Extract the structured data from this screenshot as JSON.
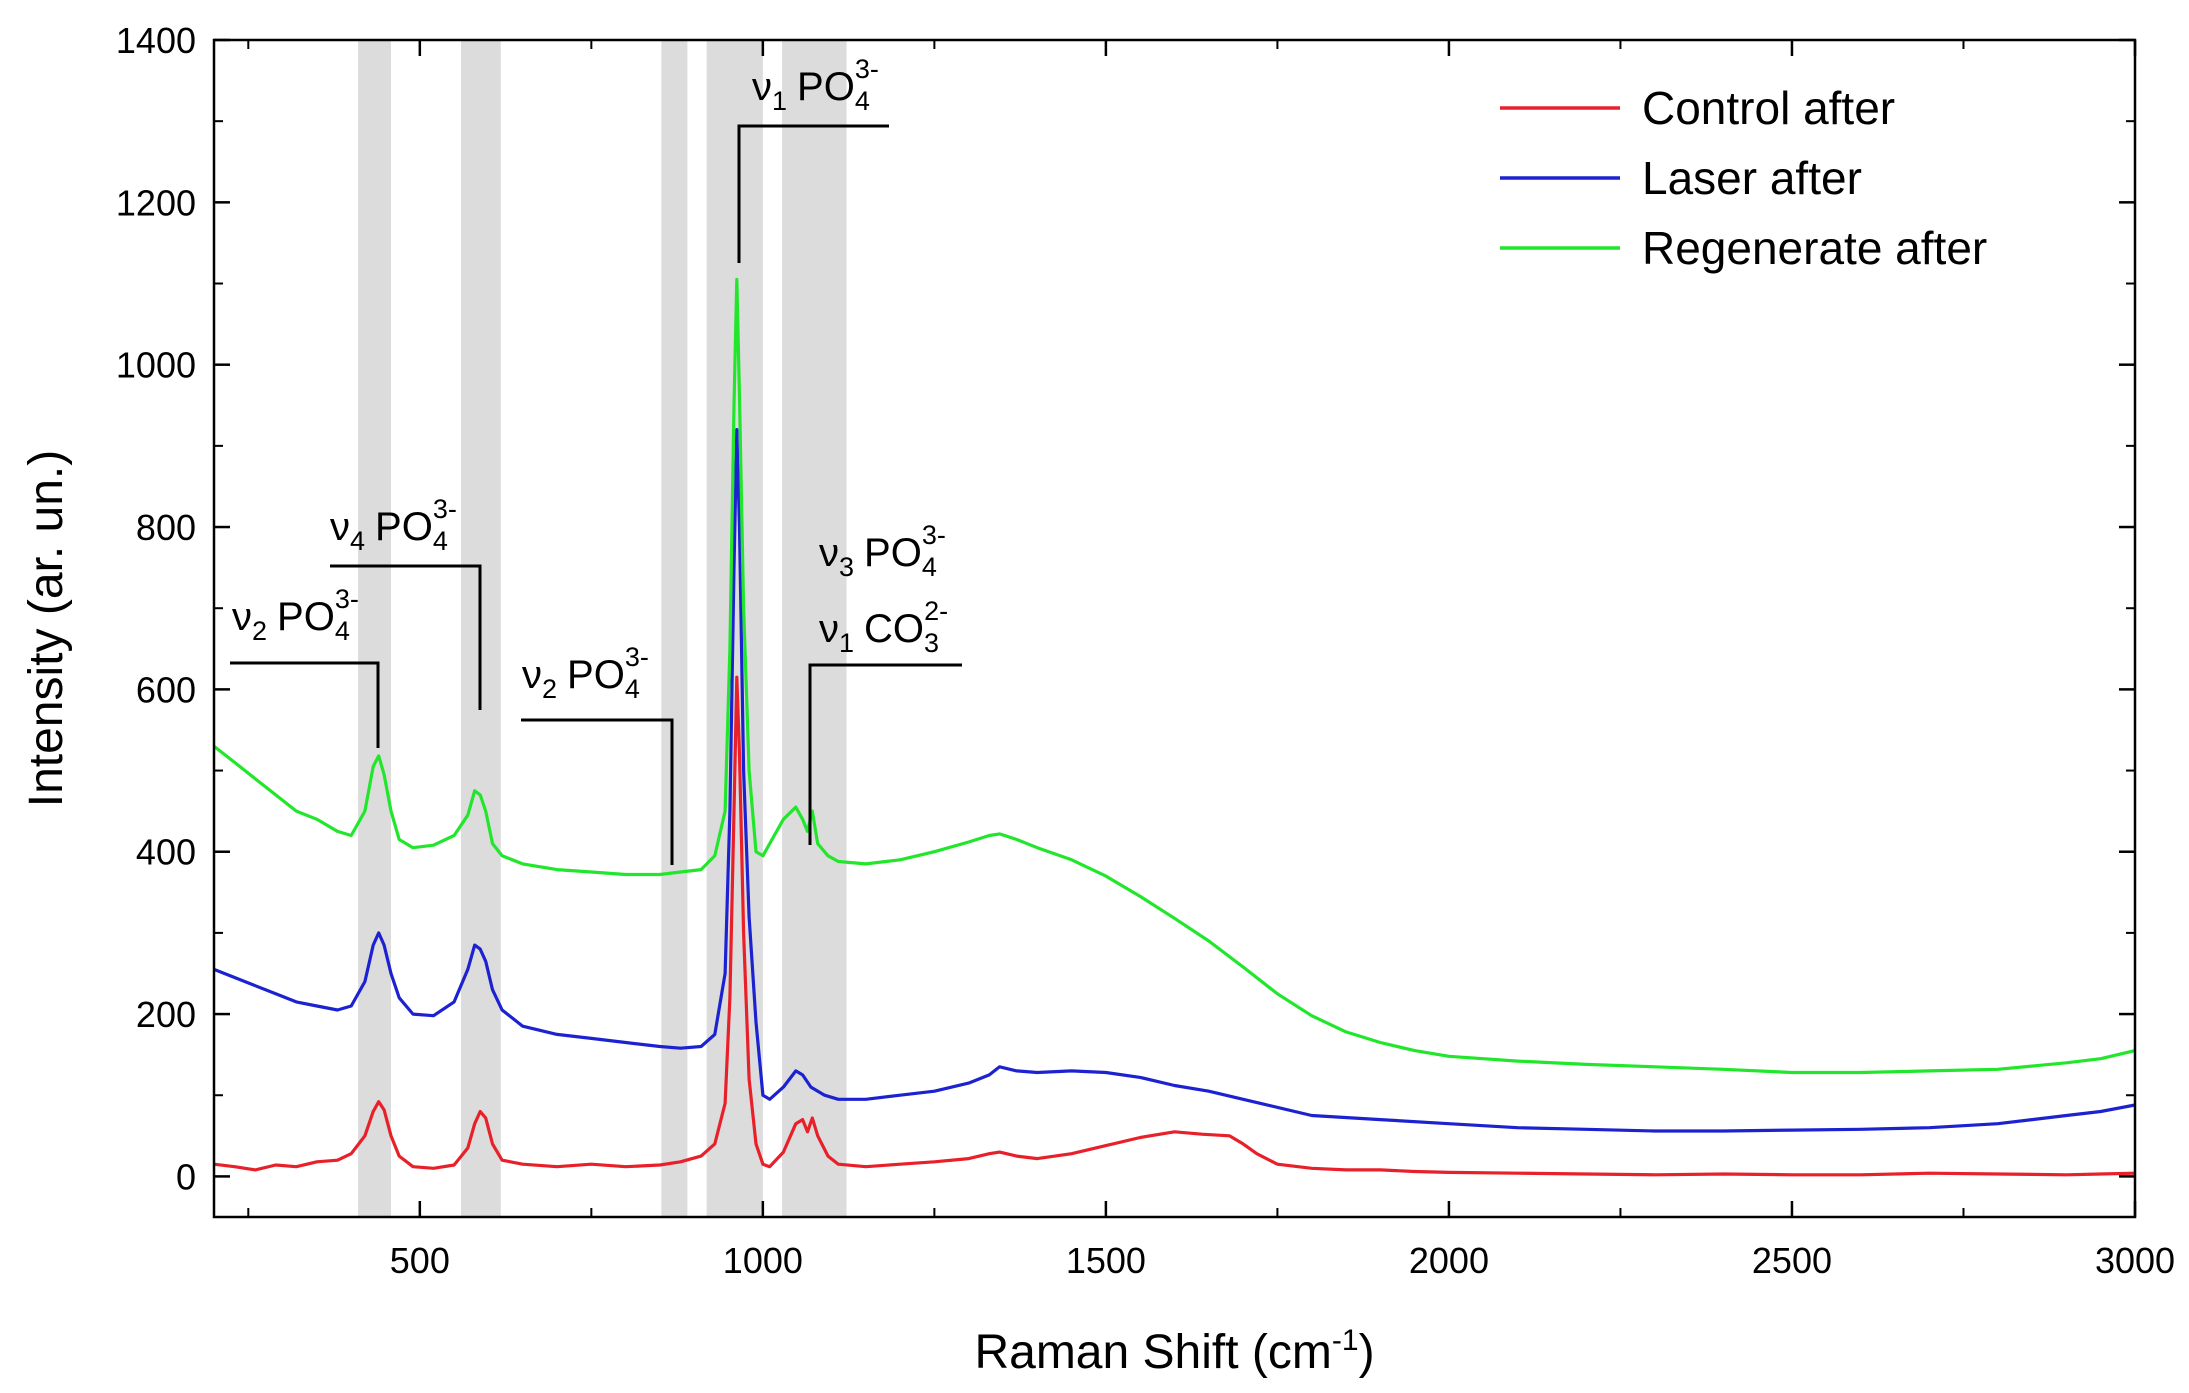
{
  "chart_data": {
    "type": "line",
    "title": "",
    "xlabel": "Raman Shift (cm",
    "xlabel_sup": "-1",
    "xlabel_close": ")",
    "ylabel": "Intensity (ar. un.)",
    "xlim": [
      200,
      3000
    ],
    "ylim": [
      -50,
      1400
    ],
    "xticks": [
      500,
      1000,
      1500,
      2000,
      2500,
      3000
    ],
    "yticks": [
      0,
      200,
      400,
      600,
      800,
      1000,
      1200,
      1400
    ],
    "legend_position": "top-right",
    "shaded_bands": [
      [
        410,
        458
      ],
      [
        560,
        618
      ],
      [
        852,
        890
      ],
      [
        918,
        1000
      ],
      [
        1028,
        1122
      ]
    ],
    "annotations": [
      {
        "nu": "ν",
        "sub": "1",
        "species": "PO",
        "species_sub": "4",
        "charge": "3-"
      },
      {
        "nu": "ν",
        "sub": "4",
        "species": "PO",
        "species_sub": "4",
        "charge": "3-"
      },
      {
        "nu": "ν",
        "sub": "2",
        "species": "PO",
        "species_sub": "4",
        "charge": "3-"
      },
      {
        "nu": "ν",
        "sub": "2",
        "species": "PO",
        "species_sub": "4",
        "charge": "3-"
      },
      {
        "nu": "ν",
        "sub": "3",
        "species": "PO",
        "species_sub": "4",
        "charge": "3-"
      },
      {
        "nu": "ν",
        "sub": "1",
        "species": "CO",
        "species_sub": "3",
        "charge": "2-"
      }
    ],
    "series": [
      {
        "name": "Control after",
        "color": "#e8202a",
        "x": [
          200,
          230,
          260,
          290,
          320,
          350,
          380,
          400,
          420,
          432,
          440,
          448,
          458,
          470,
          490,
          520,
          550,
          570,
          580,
          588,
          596,
          606,
          620,
          650,
          700,
          750,
          800,
          850,
          880,
          910,
          930,
          945,
          952,
          958,
          962,
          966,
          972,
          980,
          990,
          1000,
          1010,
          1030,
          1048,
          1058,
          1065,
          1072,
          1080,
          1095,
          1110,
          1150,
          1200,
          1250,
          1300,
          1330,
          1345,
          1370,
          1400,
          1450,
          1500,
          1550,
          1600,
          1640,
          1680,
          1700,
          1720,
          1750,
          1800,
          1850,
          1900,
          1950,
          2000,
          2100,
          2200,
          2300,
          2400,
          2500,
          2600,
          2700,
          2800,
          2900,
          2950,
          3000
        ],
        "values": [
          15,
          12,
          8,
          14,
          12,
          18,
          20,
          28,
          50,
          80,
          92,
          82,
          50,
          25,
          12,
          10,
          14,
          35,
          65,
          80,
          72,
          40,
          20,
          15,
          12,
          15,
          12,
          14,
          18,
          25,
          40,
          90,
          220,
          450,
          615,
          520,
          300,
          120,
          40,
          15,
          12,
          30,
          65,
          70,
          55,
          72,
          50,
          25,
          15,
          12,
          15,
          18,
          22,
          28,
          30,
          25,
          22,
          28,
          38,
          48,
          55,
          52,
          50,
          40,
          28,
          15,
          10,
          8,
          8,
          6,
          5,
          4,
          3,
          2,
          3,
          2,
          2,
          4,
          3,
          2,
          3,
          4
        ]
      },
      {
        "name": "Laser after",
        "color": "#1d22d0",
        "x": [
          200,
          230,
          260,
          290,
          320,
          350,
          380,
          400,
          420,
          432,
          440,
          448,
          458,
          470,
          490,
          520,
          550,
          570,
          580,
          588,
          596,
          606,
          620,
          650,
          700,
          750,
          800,
          850,
          880,
          910,
          930,
          945,
          952,
          958,
          962,
          966,
          972,
          980,
          990,
          1000,
          1010,
          1030,
          1048,
          1058,
          1070,
          1090,
          1110,
          1150,
          1200,
          1250,
          1300,
          1330,
          1345,
          1370,
          1400,
          1450,
          1500,
          1550,
          1600,
          1650,
          1700,
          1800,
          1900,
          2000,
          2100,
          2200,
          2300,
          2400,
          2500,
          2600,
          2700,
          2800,
          2850,
          2900,
          2950,
          3000
        ],
        "values": [
          255,
          245,
          235,
          225,
          215,
          210,
          205,
          210,
          240,
          285,
          300,
          285,
          250,
          220,
          200,
          198,
          215,
          255,
          285,
          280,
          265,
          230,
          205,
          185,
          175,
          170,
          165,
          160,
          158,
          160,
          175,
          250,
          450,
          750,
          920,
          800,
          500,
          320,
          190,
          100,
          95,
          110,
          130,
          125,
          110,
          100,
          95,
          95,
          100,
          105,
          115,
          125,
          135,
          130,
          128,
          130,
          128,
          122,
          112,
          105,
          95,
          75,
          70,
          65,
          60,
          58,
          56,
          56,
          57,
          58,
          60,
          65,
          70,
          75,
          80,
          88
        ]
      },
      {
        "name": "Regenerate after",
        "color": "#22e62c",
        "x": [
          200,
          230,
          260,
          290,
          320,
          350,
          380,
          400,
          420,
          432,
          440,
          448,
          458,
          470,
          490,
          520,
          550,
          570,
          580,
          588,
          596,
          606,
          620,
          650,
          700,
          750,
          800,
          850,
          880,
          910,
          930,
          945,
          952,
          958,
          962,
          966,
          972,
          980,
          990,
          1000,
          1010,
          1030,
          1048,
          1058,
          1065,
          1072,
          1080,
          1095,
          1110,
          1150,
          1200,
          1250,
          1300,
          1330,
          1345,
          1370,
          1400,
          1450,
          1500,
          1550,
          1600,
          1650,
          1700,
          1750,
          1800,
          1850,
          1900,
          1950,
          2000,
          2050,
          2100,
          2200,
          2300,
          2400,
          2500,
          2600,
          2700,
          2800,
          2900,
          2950,
          3000
        ],
        "values": [
          530,
          510,
          490,
          470,
          450,
          440,
          425,
          420,
          450,
          505,
          518,
          495,
          450,
          415,
          405,
          408,
          420,
          445,
          475,
          470,
          450,
          410,
          395,
          385,
          378,
          375,
          372,
          372,
          375,
          378,
          395,
          450,
          650,
          950,
          1105,
          960,
          700,
          500,
          400,
          395,
          410,
          440,
          455,
          440,
          425,
          450,
          410,
          395,
          388,
          385,
          390,
          400,
          412,
          420,
          422,
          415,
          405,
          390,
          370,
          345,
          318,
          290,
          258,
          225,
          198,
          178,
          165,
          155,
          148,
          145,
          142,
          138,
          135,
          132,
          128,
          128,
          130,
          132,
          140,
          145,
          155
        ]
      }
    ]
  }
}
